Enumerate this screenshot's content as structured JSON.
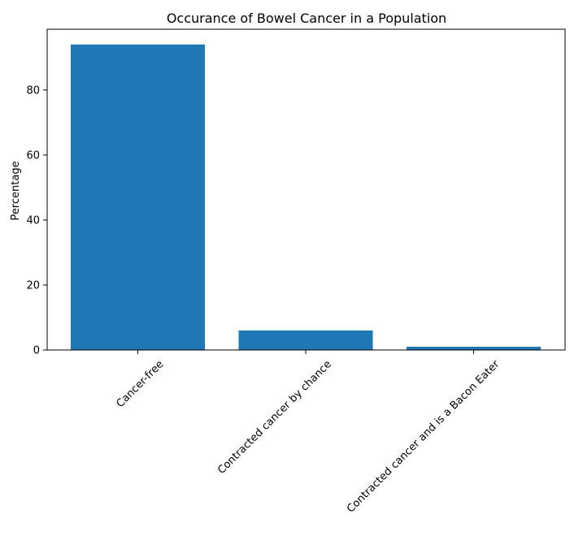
{
  "chart_data": {
    "type": "bar",
    "title": "Occurance of Bowel Cancer in a Population",
    "xlabel": "",
    "ylabel": "Percentage",
    "categories": [
      "Cancer-free",
      "Contracted cancer by chance",
      "Contracted cancer and is a Bacon Eater"
    ],
    "values": [
      94,
      6,
      1
    ],
    "ylim": [
      0,
      98.7
    ],
    "yticks": [
      0,
      20,
      40,
      60,
      80
    ],
    "bar_color": "#1f77b4",
    "grid": false,
    "legend": "none"
  }
}
